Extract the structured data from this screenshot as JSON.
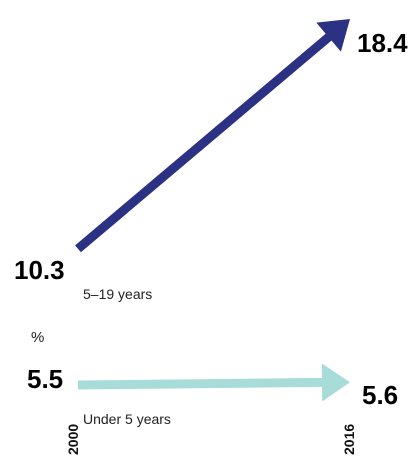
{
  "chart_data": {
    "type": "line",
    "categories": [
      "2000",
      "2016"
    ],
    "unit": "%",
    "series": [
      {
        "name": "5–19 years",
        "values": [
          10.3,
          18.4
        ],
        "color": "#2b3183"
      },
      {
        "name": "Under 5 years",
        "values": [
          5.5,
          5.6
        ],
        "color": "#a8dcd8"
      }
    ],
    "value_labels": [
      [
        "10.3",
        "18.4"
      ],
      [
        "5.5",
        "5.6"
      ]
    ],
    "grid": false,
    "legend": "none"
  }
}
